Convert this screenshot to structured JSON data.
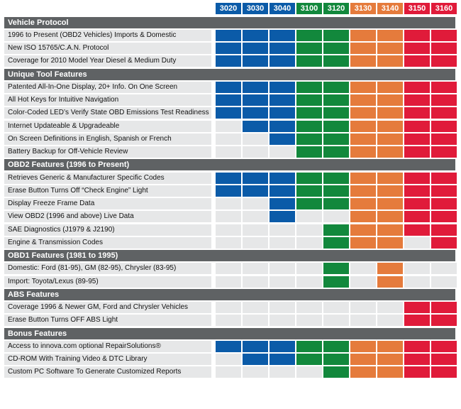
{
  "colors": {
    "blue": "#0b5ba8",
    "green": "#12883c",
    "orange": "#e57b3c",
    "red": "#e01b3a",
    "empty": "#e6e7e8",
    "header_bg": "#5f6264"
  },
  "models": [
    {
      "name": "3020",
      "color": "blue"
    },
    {
      "name": "3030",
      "color": "blue"
    },
    {
      "name": "3040",
      "color": "blue"
    },
    {
      "name": "3100",
      "color": "green"
    },
    {
      "name": "3120",
      "color": "green"
    },
    {
      "name": "3130",
      "color": "orange"
    },
    {
      "name": "3140",
      "color": "orange"
    },
    {
      "name": "3150",
      "color": "red"
    },
    {
      "name": "3160",
      "color": "red"
    }
  ],
  "sections": [
    {
      "title": "Vehicle Protocol",
      "rows": [
        {
          "label": "1996 to Present (OBD2 Vehicles) Imports & Domestic",
          "supported": [
            1,
            1,
            1,
            1,
            1,
            1,
            1,
            1,
            1
          ]
        },
        {
          "label": "New ISO 15765/C.A.N. Protocol",
          "supported": [
            1,
            1,
            1,
            1,
            1,
            1,
            1,
            1,
            1
          ]
        },
        {
          "label": "Coverage for 2010 Model Year Diesel & Medium Duty",
          "supported": [
            1,
            1,
            1,
            1,
            1,
            1,
            1,
            1,
            1
          ]
        }
      ]
    },
    {
      "title": "Unique Tool Features",
      "rows": [
        {
          "label": "Patented All-In-One Display, 20+ Info. On One Screen",
          "supported": [
            1,
            1,
            1,
            1,
            1,
            1,
            1,
            1,
            1
          ]
        },
        {
          "label": "All Hot Keys for Intuitive Navigation",
          "supported": [
            1,
            1,
            1,
            1,
            1,
            1,
            1,
            1,
            1
          ]
        },
        {
          "label": "Color-Coded LED’s Verify State OBD Emissions Test Readiness",
          "supported": [
            1,
            1,
            1,
            1,
            1,
            1,
            1,
            1,
            1
          ]
        },
        {
          "label": "Internet Updateable & Upgradeable",
          "supported": [
            0,
            1,
            1,
            1,
            1,
            1,
            1,
            1,
            1
          ]
        },
        {
          "label": "On Screen Definitions in English, Spanish or French",
          "supported": [
            0,
            0,
            1,
            1,
            1,
            1,
            1,
            1,
            1
          ]
        },
        {
          "label": "Battery Backup for Off-Vehicle Review",
          "supported": [
            0,
            0,
            0,
            1,
            1,
            1,
            1,
            1,
            1
          ]
        }
      ]
    },
    {
      "title": "OBD2 Features (1996 to Present)",
      "rows": [
        {
          "label": "Retrieves Generic & Manufacturer Specific Codes",
          "supported": [
            1,
            1,
            1,
            1,
            1,
            1,
            1,
            1,
            1
          ]
        },
        {
          "label": "Erase Button Turns Off “Check Engine” Light",
          "supported": [
            1,
            1,
            1,
            1,
            1,
            1,
            1,
            1,
            1
          ]
        },
        {
          "label": "Display Freeze Frame Data",
          "supported": [
            0,
            0,
            1,
            1,
            1,
            1,
            1,
            1,
            1
          ]
        },
        {
          "label": "View OBD2 (1996 and above) Live Data",
          "supported": [
            0,
            0,
            1,
            0,
            0,
            1,
            1,
            1,
            1
          ]
        },
        {
          "label": "SAE Diagnostics (J1979 & J2190)",
          "supported": [
            0,
            0,
            0,
            0,
            1,
            1,
            1,
            1,
            1
          ]
        },
        {
          "label": "Engine & Transmission Codes",
          "supported": [
            0,
            0,
            0,
            0,
            1,
            1,
            1,
            0,
            1
          ]
        }
      ]
    },
    {
      "title": "OBD1 Features (1981 to 1995)",
      "rows": [
        {
          "label": "Domestic: Ford (81-95), GM (82-95), Chrysler (83-95)",
          "supported": [
            0,
            0,
            0,
            0,
            1,
            0,
            1,
            0,
            0
          ]
        },
        {
          "label": "Import: Toyota/Lexus (89-95)",
          "supported": [
            0,
            0,
            0,
            0,
            1,
            0,
            1,
            0,
            0
          ]
        }
      ]
    },
    {
      "title": "ABS Features",
      "rows": [
        {
          "label": "Coverage 1996 & Newer GM, Ford and Chrysler Vehicles",
          "supported": [
            0,
            0,
            0,
            0,
            0,
            0,
            0,
            1,
            1
          ]
        },
        {
          "label": "Erase Button Turns OFF ABS Light",
          "supported": [
            0,
            0,
            0,
            0,
            0,
            0,
            0,
            1,
            1
          ]
        }
      ]
    },
    {
      "title": "Bonus Features",
      "rows": [
        {
          "label": "Access to innova.com optional RepairSolutions®",
          "supported": [
            1,
            1,
            1,
            1,
            1,
            1,
            1,
            1,
            1
          ]
        },
        {
          "label": "CD-ROM With Training Video & DTC Library",
          "supported": [
            0,
            1,
            1,
            1,
            1,
            1,
            1,
            1,
            1
          ]
        },
        {
          "label": "Custom PC Software To Generate Customized Reports",
          "supported": [
            0,
            0,
            0,
            0,
            1,
            1,
            1,
            1,
            1
          ]
        }
      ]
    }
  ]
}
